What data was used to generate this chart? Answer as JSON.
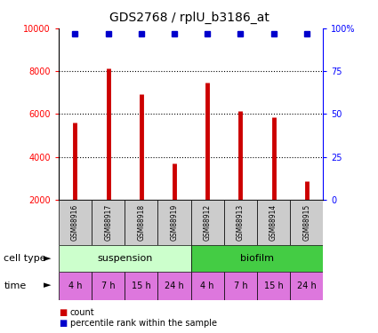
{
  "title": "GDS2768 / rplU_b3186_at",
  "samples": [
    "GSM88916",
    "GSM88917",
    "GSM88918",
    "GSM88919",
    "GSM88912",
    "GSM88913",
    "GSM88914",
    "GSM88915"
  ],
  "counts": [
    5600,
    8150,
    6950,
    3700,
    7450,
    6150,
    5850,
    2850
  ],
  "percentile_rank": 97,
  "ylim_left": [
    2000,
    10000
  ],
  "ylim_right": [
    0,
    100
  ],
  "yticks_left": [
    2000,
    4000,
    6000,
    8000,
    10000
  ],
  "yticks_right": [
    0,
    25,
    50,
    75,
    100
  ],
  "bar_color": "#cc0000",
  "dot_color": "#0000cc",
  "cell_type_groups": [
    {
      "label": "suspension",
      "start": 0,
      "end": 4,
      "color": "#ccffcc"
    },
    {
      "label": "biofilm",
      "start": 4,
      "end": 8,
      "color": "#44cc44"
    }
  ],
  "time_labels": [
    "4 h",
    "7 h",
    "15 h",
    "24 h",
    "4 h",
    "7 h",
    "15 h",
    "24 h"
  ],
  "time_color": "#dd77dd",
  "sample_box_color": "#cccccc",
  "legend_count_color": "#cc0000",
  "legend_dot_color": "#0000cc",
  "xlabel_cell_type": "cell type",
  "xlabel_time": "time",
  "grid_dotted_ticks": [
    4000,
    6000,
    8000
  ],
  "background_color": "#ffffff",
  "bar_linewidth": 3.5,
  "dot_markersize": 5,
  "title_fontsize": 10,
  "tick_fontsize": 7,
  "sample_fontsize": 5.5,
  "celltype_fontsize": 8,
  "time_fontsize": 7,
  "legend_fontsize": 7
}
